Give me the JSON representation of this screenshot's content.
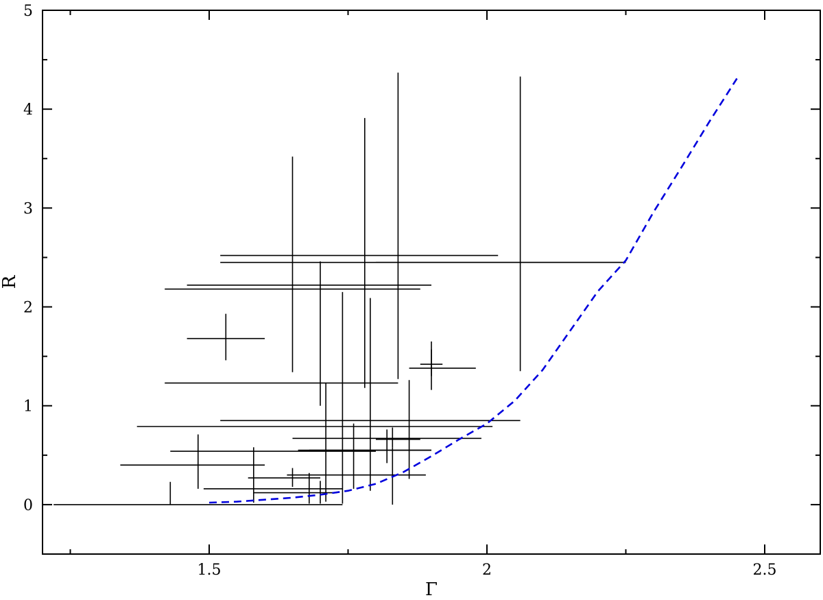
{
  "chart_data": {
    "type": "scatter",
    "title": "",
    "xlabel": "Γ",
    "ylabel": "R",
    "xlim": [
      1.2,
      2.6
    ],
    "ylim": [
      -0.5,
      5
    ],
    "x_major_ticks": [
      1.5,
      2,
      2.5
    ],
    "x_minor_ticks": [
      1.25,
      1.75,
      2.25
    ],
    "y_major_ticks": [
      0,
      1,
      2,
      3,
      4,
      5
    ],
    "y_minor_ticks": [
      -0.5,
      0.5,
      1.5,
      2.5,
      3.5,
      4.5
    ],
    "x_tick_labels": [
      "1.5",
      "2",
      "2.5"
    ],
    "y_tick_labels": [
      "0",
      "1",
      "2",
      "3",
      "4",
      "5"
    ],
    "grid": false,
    "legend": "none",
    "colors": {
      "points": "#000000",
      "model": "#0000dd"
    },
    "points": [
      {
        "x": 1.53,
        "xerr": [
          1.46,
          1.6
        ],
        "y": 1.68,
        "yerr": [
          1.46,
          1.93
        ]
      },
      {
        "x": 1.65,
        "xerr": [
          1.52,
          2.02
        ],
        "y": 2.52,
        "yerr": [
          1.34,
          3.52
        ]
      },
      {
        "x": 1.7,
        "xerr": [
          1.46,
          1.9
        ],
        "y": 2.22,
        "yerr": [
          1.0,
          2.46
        ]
      },
      {
        "x": 1.78,
        "xerr": [
          1.42,
          1.88
        ],
        "y": 2.18,
        "yerr": [
          1.18,
          3.91
        ]
      },
      {
        "x": 1.84,
        "xerr": [
          1.52,
          2.25
        ],
        "y": 2.45,
        "yerr": [
          1.27,
          4.37
        ]
      },
      {
        "x": 2.06,
        "xerr": [
          1.8,
          2.25
        ],
        "y": 2.45,
        "yerr": [
          1.35,
          4.33
        ]
      },
      {
        "x": 1.9,
        "xerr": [
          1.86,
          1.98
        ],
        "y": 1.38,
        "yerr": [
          1.16,
          1.65
        ]
      },
      {
        "x": 1.9,
        "xerr": [
          1.88,
          1.92
        ],
        "y": 1.42,
        "yerr": [
          1.3,
          1.57
        ]
      },
      {
        "x": 1.71,
        "xerr": [
          1.42,
          1.84
        ],
        "y": 1.23,
        "yerr": [
          0.03,
          1.23
        ]
      },
      {
        "x": 1.79,
        "xerr": [
          1.52,
          2.06
        ],
        "y": 0.85,
        "yerr": [
          0.14,
          2.09
        ]
      },
      {
        "x": 1.74,
        "xerr": [
          1.37,
          2.01
        ],
        "y": 0.79,
        "yerr": [
          0.01,
          2.15
        ]
      },
      {
        "x": 1.86,
        "xerr": [
          1.65,
          1.99
        ],
        "y": 0.67,
        "yerr": [
          0.26,
          1.26
        ]
      },
      {
        "x": 1.76,
        "xerr": [
          1.68,
          1.9
        ],
        "y": 0.55,
        "yerr": [
          0.16,
          0.82
        ]
      },
      {
        "x": 1.83,
        "xerr": [
          1.8,
          1.88
        ],
        "y": 0.66,
        "yerr": [
          0.58,
          0.78
        ]
      },
      {
        "x": 1.82,
        "xerr": [
          1.66,
          1.9
        ],
        "y": 0.55,
        "yerr": [
          0.42,
          0.76
        ]
      },
      {
        "x": 1.48,
        "xerr": [
          1.43,
          1.8
        ],
        "y": 0.54,
        "yerr": [
          0.16,
          0.71
        ]
      },
      {
        "x": 1.58,
        "xerr": [
          1.34,
          1.6
        ],
        "y": 0.4,
        "yerr": [
          0.02,
          0.58
        ]
      },
      {
        "x": 1.65,
        "xerr": [
          1.57,
          1.7
        ],
        "y": 0.27,
        "yerr": [
          0.18,
          0.37
        ]
      },
      {
        "x": 1.83,
        "xerr": [
          1.64,
          1.89
        ],
        "y": 0.3,
        "yerr": [
          0.0,
          0.58
        ]
      },
      {
        "x": 1.68,
        "xerr": [
          1.49,
          1.74
        ],
        "y": 0.16,
        "yerr": [
          0.01,
          0.32
        ]
      },
      {
        "x": 1.7,
        "xerr": [
          1.58,
          1.73
        ],
        "y": 0.12,
        "yerr": [
          0.01,
          0.24
        ]
      },
      {
        "x": 1.43,
        "xerr": [
          1.22,
          1.74
        ],
        "y": 0.0,
        "yerr": [
          0.0,
          0.23
        ]
      }
    ],
    "model": {
      "style": "dashed",
      "x": [
        1.5,
        1.55,
        1.6,
        1.65,
        1.7,
        1.75,
        1.8,
        1.85,
        1.9,
        1.95,
        2.0,
        2.05,
        2.1,
        2.15,
        2.2,
        2.25,
        2.3,
        2.35,
        2.4,
        2.45
      ],
      "y": [
        0.02,
        0.03,
        0.05,
        0.07,
        0.1,
        0.14,
        0.21,
        0.33,
        0.49,
        0.66,
        0.82,
        1.05,
        1.36,
        1.76,
        2.16,
        2.47,
        2.96,
        3.41,
        3.87,
        4.31
      ]
    }
  }
}
